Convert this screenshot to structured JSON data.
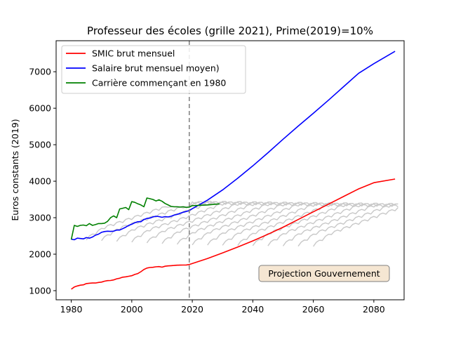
{
  "chart_data": {
    "type": "line",
    "title": "Professeur des écoles (grille 2021), Prime(2019)=10%",
    "xlabel": "",
    "ylabel": "Euros constants (2019)",
    "xlim": [
      1975,
      2090
    ],
    "ylim": [
      750,
      7850
    ],
    "x_ticks": [
      1980,
      2000,
      2020,
      2040,
      2060,
      2080
    ],
    "y_ticks": [
      1000,
      2000,
      3000,
      4000,
      5000,
      6000,
      7000
    ],
    "legend_position": "upper-left",
    "vertical_line": {
      "x": 2019,
      "style": "dashed",
      "color": "#7f7f7f"
    },
    "annotation": {
      "text": "Projection Gouvernement",
      "x": 2060,
      "y": 1450
    },
    "series": [
      {
        "name": "SMIC brut mensuel",
        "color": "#ff0000",
        "x": [
          1980,
          1981,
          1982,
          1983,
          1984,
          1985,
          1986,
          1987,
          1988,
          1989,
          1990,
          1991,
          1992,
          1993,
          1994,
          1995,
          1996,
          1997,
          1998,
          1999,
          2000,
          2001,
          2002,
          2003,
          2004,
          2005,
          2006,
          2007,
          2008,
          2009,
          2010,
          2011,
          2012,
          2013,
          2014,
          2015,
          2016,
          2017,
          2018,
          2019,
          2025,
          2030,
          2035,
          2040,
          2045,
          2050,
          2055,
          2060,
          2065,
          2070,
          2075,
          2080,
          2087
        ],
        "values": [
          1040,
          1100,
          1130,
          1150,
          1160,
          1195,
          1205,
          1210,
          1210,
          1225,
          1235,
          1260,
          1275,
          1280,
          1295,
          1325,
          1340,
          1370,
          1380,
          1395,
          1410,
          1445,
          1470,
          1520,
          1580,
          1620,
          1635,
          1640,
          1655,
          1660,
          1645,
          1670,
          1680,
          1685,
          1690,
          1698,
          1700,
          1702,
          1705,
          1715,
          1880,
          2035,
          2195,
          2365,
          2545,
          2740,
          2950,
          3160,
          3370,
          3580,
          3790,
          3960,
          4060
        ]
      },
      {
        "name": "Salaire brut mensuel moyen)",
        "color": "#0000ff",
        "x": [
          1980,
          1981,
          1982,
          1983,
          1984,
          1985,
          1986,
          1987,
          1988,
          1989,
          1990,
          1991,
          1992,
          1993,
          1994,
          1995,
          1996,
          1997,
          1998,
          1999,
          2000,
          2001,
          2002,
          2003,
          2004,
          2005,
          2006,
          2007,
          2008,
          2009,
          2010,
          2011,
          2012,
          2013,
          2014,
          2015,
          2016,
          2017,
          2018,
          2019,
          2025,
          2030,
          2035,
          2040,
          2045,
          2050,
          2055,
          2060,
          2065,
          2070,
          2075,
          2080,
          2087
        ],
        "values": [
          2410,
          2395,
          2440,
          2430,
          2420,
          2455,
          2440,
          2470,
          2520,
          2550,
          2600,
          2620,
          2630,
          2625,
          2630,
          2660,
          2660,
          2700,
          2740,
          2790,
          2820,
          2860,
          2890,
          2890,
          2950,
          2980,
          2990,
          3020,
          3040,
          3030,
          3010,
          3030,
          3020,
          3040,
          3070,
          3090,
          3120,
          3150,
          3170,
          3200,
          3480,
          3760,
          4080,
          4420,
          4780,
          5150,
          5510,
          5860,
          6220,
          6590,
          6960,
          7220,
          7560
        ]
      },
      {
        "name": "Carrière commençant en 1980",
        "color": "#008000",
        "x": [
          1980,
          1981,
          1982,
          1983,
          1984,
          1985,
          1986,
          1987,
          1988,
          1989,
          1990,
          1991,
          1992,
          1993,
          1994,
          1995,
          1996,
          1997,
          1998,
          1999,
          2000,
          2001,
          2002,
          2003,
          2004,
          2005,
          2006,
          2007,
          2008,
          2009,
          2010,
          2011,
          2012,
          2013,
          2014,
          2015,
          2016,
          2017,
          2018,
          2019,
          2020,
          2025,
          2029
        ],
        "values": [
          2400,
          2790,
          2760,
          2790,
          2800,
          2780,
          2840,
          2790,
          2810,
          2840,
          2840,
          2850,
          2900,
          3000,
          3050,
          3000,
          3240,
          3260,
          3280,
          3220,
          3440,
          3420,
          3380,
          3350,
          3300,
          3540,
          3520,
          3500,
          3460,
          3490,
          3450,
          3390,
          3350,
          3310,
          3300,
          3300,
          3290,
          3300,
          3280,
          3290,
          3330,
          3350,
          3380
        ]
      }
    ],
    "background_series_note": "grey staggered career curves (unlabeled)"
  }
}
